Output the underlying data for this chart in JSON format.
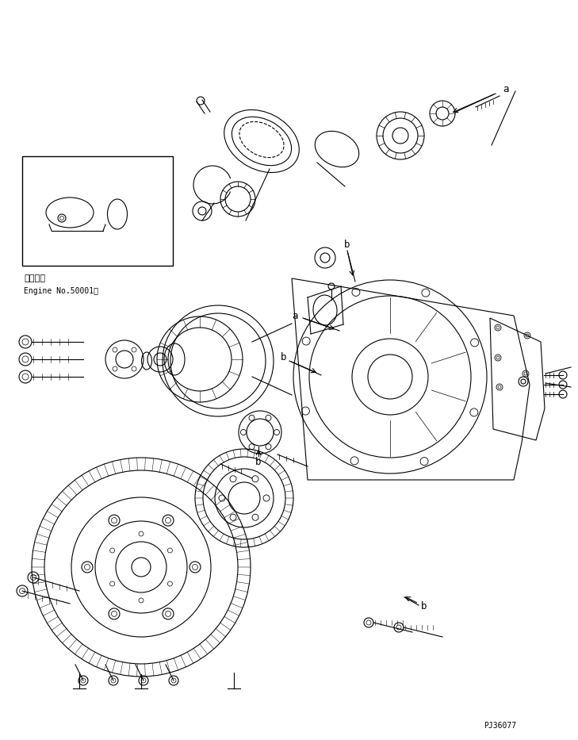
{
  "bg_color": "#ffffff",
  "line_color": "#000000",
  "fig_width": 7.29,
  "fig_height": 9.33,
  "dpi": 100,
  "text_inset_line1": "適用号機",
  "text_inset_line2": "Engine No.50001～",
  "label_a": "a",
  "label_b": "b",
  "part_number": "PJ36077"
}
